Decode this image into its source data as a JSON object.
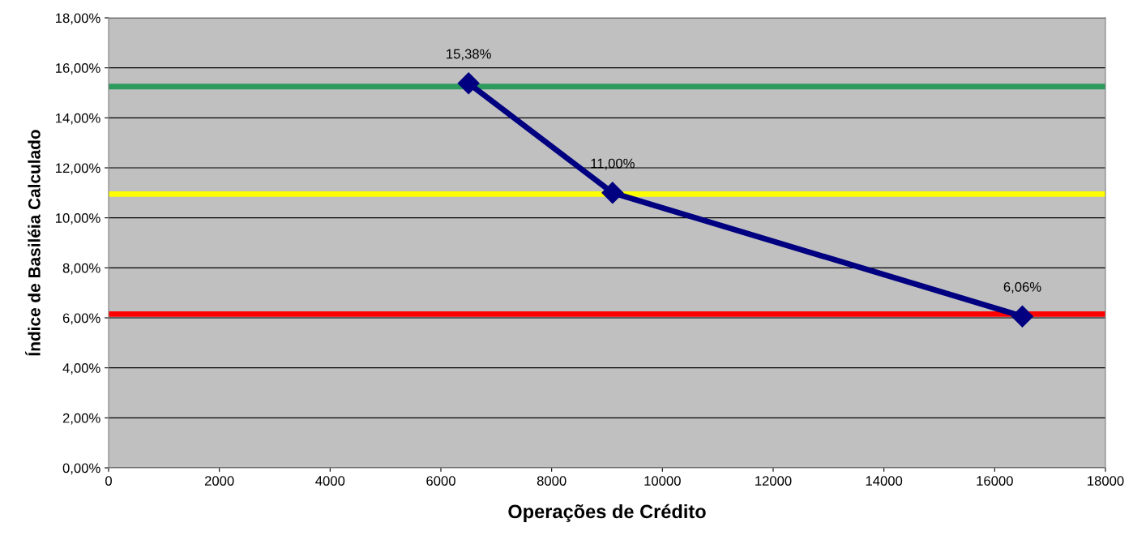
{
  "chart_data": {
    "type": "line",
    "xlabel": "Operações de Crédito",
    "ylabel": "Índice de Basiléia Calculado",
    "x": [
      6500,
      9100,
      16500
    ],
    "series": [
      {
        "color": "#000080",
        "values": [
          15.38,
          11.0,
          6.06
        ],
        "value_labels": [
          "15,38%",
          "11,00%",
          "6,06%"
        ]
      }
    ],
    "marker": "diamond",
    "line_style": "solid",
    "grid": "y",
    "xlim": [
      0,
      18000
    ],
    "xticks": [
      0,
      2000,
      4000,
      6000,
      8000,
      10000,
      12000,
      14000,
      16000,
      18000
    ],
    "ylim": [
      0,
      18
    ],
    "yticks": [
      {
        "value": 0,
        "label": "0,00%"
      },
      {
        "value": 2,
        "label": "2,00%"
      },
      {
        "value": 4,
        "label": "4,00%"
      },
      {
        "value": 6,
        "label": "6,00%"
      },
      {
        "value": 8,
        "label": "8,00%"
      },
      {
        "value": 10,
        "label": "10,00%"
      },
      {
        "value": 12,
        "label": "12,00%"
      },
      {
        "value": 14,
        "label": "14,00%"
      },
      {
        "value": 16,
        "label": "16,00%"
      },
      {
        "value": 18,
        "label": "18,00%"
      }
    ],
    "ref_lines": [
      {
        "axis": "y",
        "value": 15.25,
        "color": "#2e9a5e"
      },
      {
        "axis": "y",
        "value": 10.95,
        "color": "#ffff00"
      },
      {
        "axis": "y",
        "value": 6.15,
        "color": "#ff0000"
      }
    ]
  }
}
